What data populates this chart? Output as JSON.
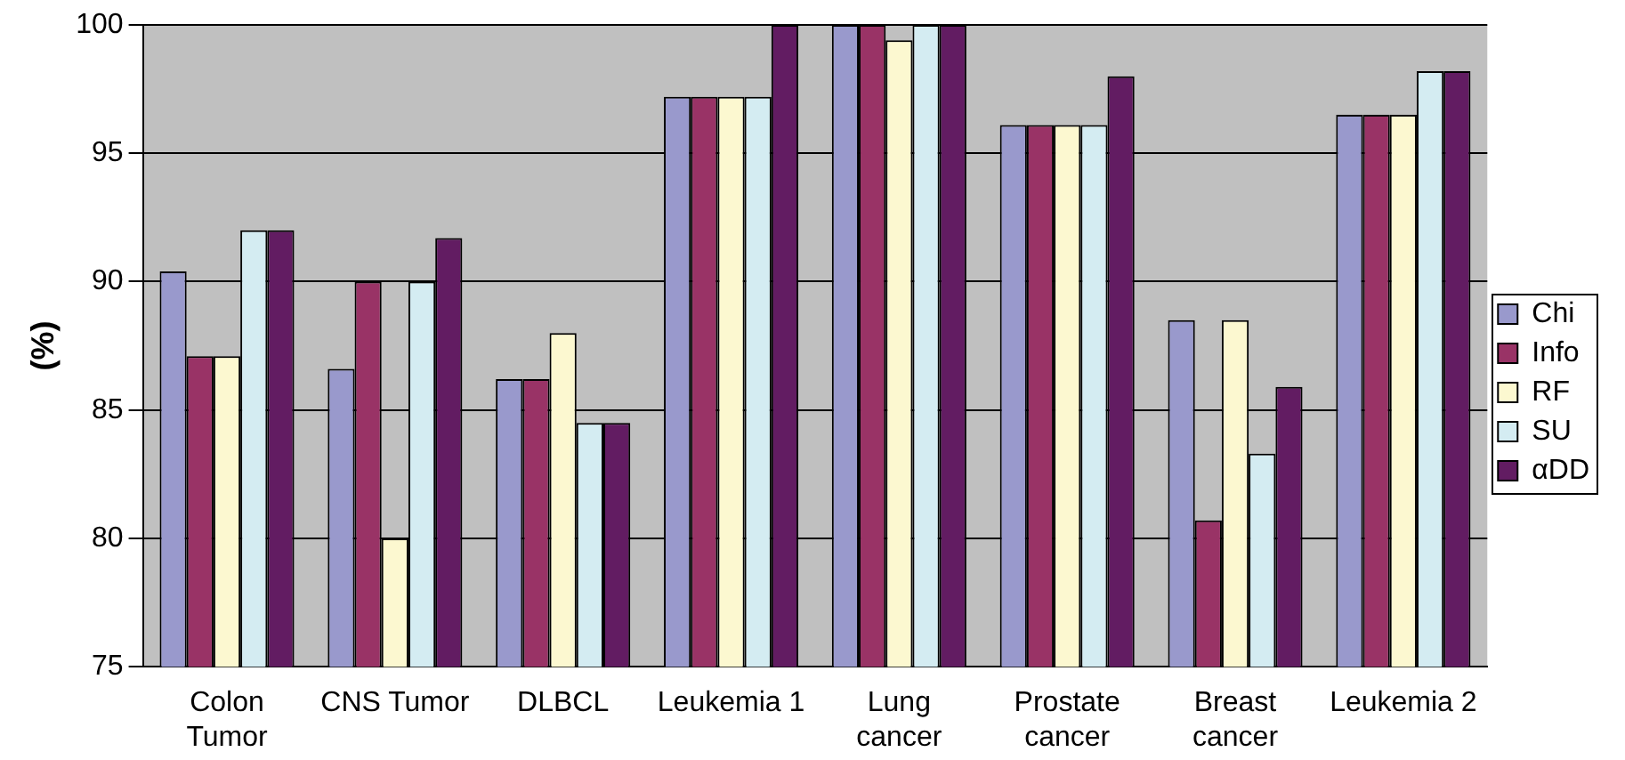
{
  "chart_data": {
    "type": "bar",
    "ylabel": "(%)",
    "categories": [
      "Colon Tumor",
      "CNS Tumor",
      "DLBCL",
      "Leukemia 1",
      "Lung cancer",
      "Prostate cancer",
      "Breast cancer",
      "Leukemia 2"
    ],
    "series": [
      {
        "name": "Chi",
        "color": "#9999cc",
        "values": [
          90.4,
          86.6,
          86.2,
          97.2,
          100,
          96.1,
          88.5,
          96.5
        ]
      },
      {
        "name": "Info",
        "color": "#993366",
        "values": [
          87.1,
          90.0,
          86.2,
          97.2,
          100,
          96.1,
          80.7,
          96.5
        ]
      },
      {
        "name": "RF",
        "color": "#fcf8d0",
        "values": [
          87.1,
          80.0,
          88.0,
          97.2,
          99.4,
          96.1,
          88.5,
          96.5
        ]
      },
      {
        "name": "SU",
        "color": "#d4ecf2",
        "values": [
          92.0,
          90.0,
          84.5,
          97.2,
          100,
          96.1,
          83.3,
          98.2
        ]
      },
      {
        "name": "αDD",
        "color": "#621c62",
        "values": [
          92.0,
          91.7,
          84.5,
          100,
          100,
          98.0,
          85.9,
          98.2
        ]
      }
    ],
    "ylim": [
      75,
      100
    ],
    "yticks": [
      75,
      80,
      85,
      90,
      95,
      100
    ],
    "grid": "y",
    "legend": "right"
  }
}
